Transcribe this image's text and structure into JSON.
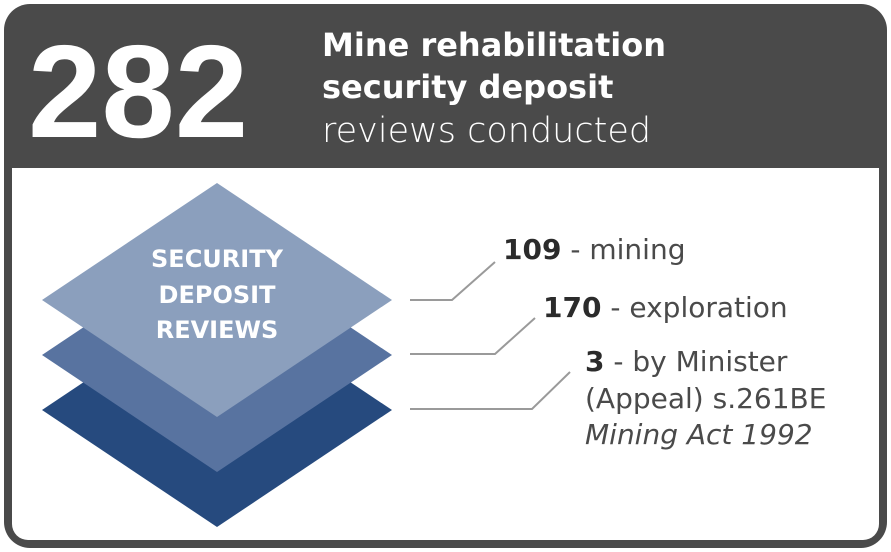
{
  "header": {
    "number": "282",
    "title_lines": [
      "Mine rehabilitation",
      "security deposit"
    ],
    "subtitle": "reviews conducted"
  },
  "diagram": {
    "label_lines": [
      "SECURITY",
      "DEPOSIT",
      "REVIEWS"
    ]
  },
  "items": [
    {
      "number": "109",
      "text": "- mining"
    },
    {
      "number": "170",
      "text": "- exploration"
    },
    {
      "number": "3",
      "text": "- by Minister",
      "extra": "(Appeal) s.261BE",
      "italic": "Mining Act 1992"
    }
  ]
}
